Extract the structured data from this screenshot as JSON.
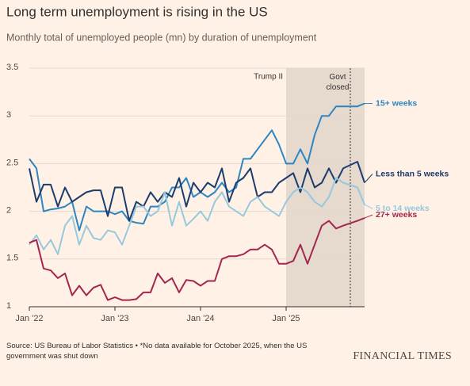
{
  "chart_data": {
    "type": "line",
    "title": "Long term unemployment is rising in the US",
    "subtitle": "Monthly total of unemployed people (mn) by duration of unemployment",
    "source": "Source: US Bureau of Labor Statistics • *No data available for October 2025, when the US government was shut down",
    "brand": "FINANCIAL TIMES",
    "x": [
      "2022-01",
      "2022-02",
      "2022-03",
      "2022-04",
      "2022-05",
      "2022-06",
      "2022-07",
      "2022-08",
      "2022-09",
      "2022-10",
      "2022-11",
      "2022-12",
      "2023-01",
      "2023-02",
      "2023-03",
      "2023-04",
      "2023-05",
      "2023-06",
      "2023-07",
      "2023-08",
      "2023-09",
      "2023-10",
      "2023-11",
      "2023-12",
      "2024-01",
      "2024-02",
      "2024-03",
      "2024-04",
      "2024-05",
      "2024-06",
      "2024-07",
      "2024-08",
      "2024-09",
      "2024-10",
      "2024-11",
      "2024-12",
      "2025-01",
      "2025-02",
      "2025-03",
      "2025-04",
      "2025-05",
      "2025-06",
      "2025-07",
      "2025-08",
      "2025-09",
      "2025-11",
      "2025-12"
    ],
    "series": [
      {
        "name": "15+ weeks",
        "color": "#2e86c1",
        "values": [
          2.55,
          2.45,
          2.0,
          2.02,
          2.03,
          2.05,
          2.1,
          1.8,
          2.05,
          2.0,
          2.0,
          2.0,
          1.97,
          2.0,
          1.9,
          1.88,
          1.87,
          2.05,
          2.05,
          2.1,
          2.25,
          2.25,
          2.35,
          2.15,
          2.2,
          2.15,
          2.2,
          2.3,
          2.2,
          2.25,
          2.55,
          2.55,
          2.65,
          2.75,
          2.85,
          2.7,
          2.5,
          2.5,
          2.65,
          2.5,
          2.8,
          3.0,
          3.0,
          3.1,
          3.1,
          3.1,
          3.13
        ]
      },
      {
        "name": "Less than 5 weeks",
        "color": "#1d3c6e",
        "values": [
          2.45,
          2.1,
          2.28,
          2.28,
          2.05,
          2.25,
          2.1,
          2.15,
          2.2,
          2.22,
          2.22,
          1.95,
          2.25,
          2.25,
          1.9,
          2.1,
          2.05,
          2.2,
          2.1,
          2.2,
          2.15,
          2.35,
          2.05,
          2.3,
          2.2,
          2.3,
          2.25,
          2.45,
          2.1,
          2.3,
          2.35,
          2.45,
          2.15,
          2.2,
          2.2,
          2.3,
          2.35,
          2.4,
          2.2,
          2.45,
          2.25,
          2.3,
          2.45,
          2.3,
          2.45,
          2.52,
          2.3
        ]
      },
      {
        "name": "5 to 14 weeks",
        "color": "#96c8de",
        "values": [
          1.65,
          1.75,
          1.6,
          1.7,
          1.55,
          1.85,
          1.95,
          1.65,
          1.85,
          1.72,
          1.7,
          1.8,
          1.78,
          1.65,
          1.85,
          2.05,
          2.05,
          1.95,
          2.0,
          2.2,
          1.85,
          2.1,
          1.85,
          1.92,
          2.0,
          1.9,
          2.1,
          2.2,
          2.05,
          2.0,
          1.95,
          2.1,
          2.15,
          2.05,
          2.0,
          1.95,
          2.1,
          2.2,
          2.25,
          2.2,
          2.1,
          2.05,
          2.15,
          2.35,
          2.3,
          2.25,
          2.07
        ]
      },
      {
        "name": "27+ weeks",
        "color": "#a3264f",
        "values": [
          1.67,
          1.7,
          1.4,
          1.38,
          1.3,
          1.35,
          1.12,
          1.22,
          1.12,
          1.2,
          1.23,
          1.07,
          1.1,
          1.07,
          1.07,
          1.08,
          1.15,
          1.15,
          1.35,
          1.25,
          1.3,
          1.15,
          1.28,
          1.27,
          1.22,
          1.27,
          1.27,
          1.5,
          1.53,
          1.53,
          1.55,
          1.6,
          1.6,
          1.65,
          1.6,
          1.45,
          1.45,
          1.48,
          1.65,
          1.45,
          1.65,
          1.85,
          1.9,
          1.82,
          1.85,
          1.9,
          1.93
        ]
      }
    ],
    "xlim": [
      "2022-01",
      "2025-12"
    ],
    "xticks": [
      {
        "value": "2022-01",
        "label": "Jan '22"
      },
      {
        "value": "2023-01",
        "label": "Jan '23"
      },
      {
        "value": "2024-01",
        "label": "Jan '24"
      },
      {
        "value": "2025-01",
        "label": "Jan '25"
      }
    ],
    "ylim": [
      1,
      3.5
    ],
    "yticks": [
      1,
      1.5,
      2,
      2.5,
      3,
      3.5
    ],
    "grid": true,
    "shaded_period": {
      "label": "Trump II",
      "start": "2025-01",
      "color": "#e6d9ce"
    },
    "marker_line": {
      "label": "Govt closed",
      "x": "2025-10"
    }
  }
}
